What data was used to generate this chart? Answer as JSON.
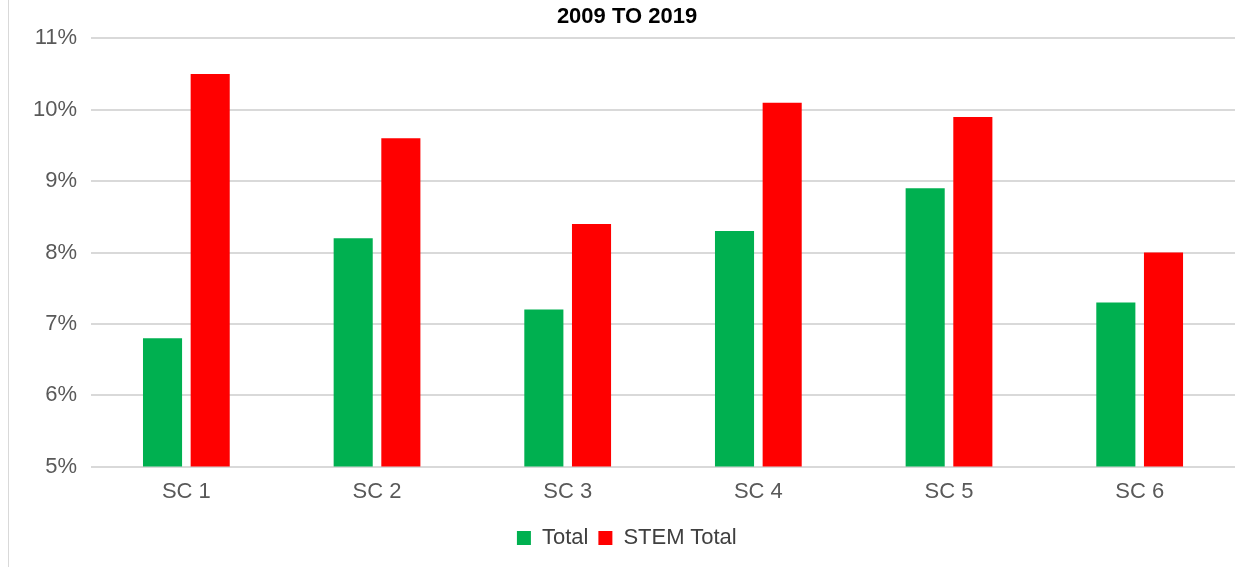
{
  "chart_data": {
    "type": "bar",
    "title": "2009 TO 2019",
    "categories": [
      "SC 1",
      "SC 2",
      "SC 3",
      "SC 4",
      "SC 5",
      "SC 6"
    ],
    "series": [
      {
        "name": "Total",
        "color": "#00b050",
        "values": [
          6.8,
          8.2,
          7.2,
          8.3,
          8.9,
          7.3
        ]
      },
      {
        "name": "STEM Total",
        "color": "#ff0000",
        "values": [
          10.5,
          9.6,
          8.4,
          10.1,
          9.9,
          8.0
        ]
      }
    ],
    "ylim": [
      5,
      11
    ],
    "yticks": [
      {
        "value": 5,
        "label": "5%"
      },
      {
        "value": 6,
        "label": "6%"
      },
      {
        "value": 7,
        "label": "7%"
      },
      {
        "value": 8,
        "label": "8%"
      },
      {
        "value": 9,
        "label": "9%"
      },
      {
        "value": 10,
        "label": "10%"
      },
      {
        "value": 11,
        "label": "11%"
      }
    ],
    "grid": "y",
    "legend": "bottom"
  }
}
